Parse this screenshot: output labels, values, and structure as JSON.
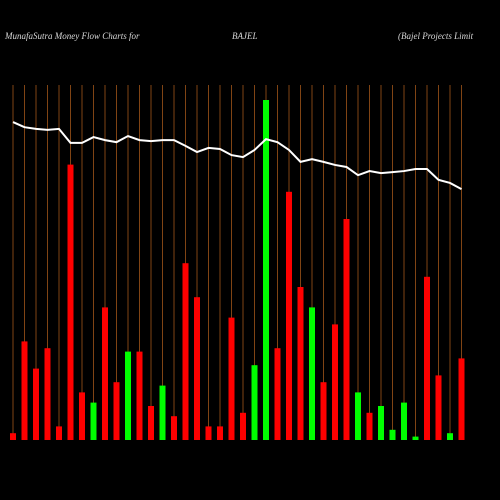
{
  "chart_data": {
    "type": "bar",
    "title": "MunafaSutra  Money Flow  Charts for",
    "symbol": "BAJEL",
    "company": "(Bajel Projects Limit",
    "ylim": [
      0,
      100
    ],
    "series": [
      {
        "type": "bar",
        "colors": [
          "#ff0000",
          "#ff0000",
          "#ff0000",
          "#ff0000",
          "#ff0000",
          "#ff0000",
          "#ff0000",
          "#00ff00",
          "#ff0000",
          "#ff0000",
          "#00ff00",
          "#ff0000",
          "#ff0000",
          "#00ff00",
          "#ff0000",
          "#ff0000",
          "#ff0000",
          "#ff0000",
          "#ff0000",
          "#ff0000",
          "#ff0000",
          "#00ff00",
          "#00ff00",
          "#ff0000",
          "#ff0000",
          "#ff0000",
          "#00ff00",
          "#ff0000",
          "#ff0000",
          "#ff0000",
          "#00ff00",
          "#ff0000",
          "#00ff00",
          "#00ff00",
          "#00ff00",
          "#00ff00",
          "#ff0000",
          "#ff0000",
          "#00ff00",
          "#ff0000"
        ],
        "values": [
          2,
          29,
          21,
          27,
          4,
          81,
          14,
          11,
          39,
          17,
          26,
          26,
          10,
          16,
          7,
          52,
          42,
          4,
          4,
          36,
          8,
          22,
          100,
          27,
          73,
          45,
          39,
          17,
          34,
          65,
          14,
          8,
          10,
          3,
          11,
          1,
          48,
          19,
          2,
          24
        ]
      },
      {
        "type": "line",
        "color": "#ffffff",
        "values": [
          93.5,
          92,
          91.5,
          91.2,
          91.5,
          87.4,
          87.4,
          89.1,
          88.2,
          87.6,
          89.4,
          88.2,
          87.9,
          88.2,
          88.2,
          86.5,
          84.7,
          85.9,
          85.6,
          83.8,
          83.2,
          85.3,
          88.5,
          87.6,
          85.3,
          81.8,
          82.6,
          81.8,
          80.9,
          80.3,
          77.9,
          79.1,
          78.5,
          78.8,
          79.1,
          79.7,
          79.7,
          76.5,
          75.6,
          73.8
        ]
      }
    ]
  }
}
